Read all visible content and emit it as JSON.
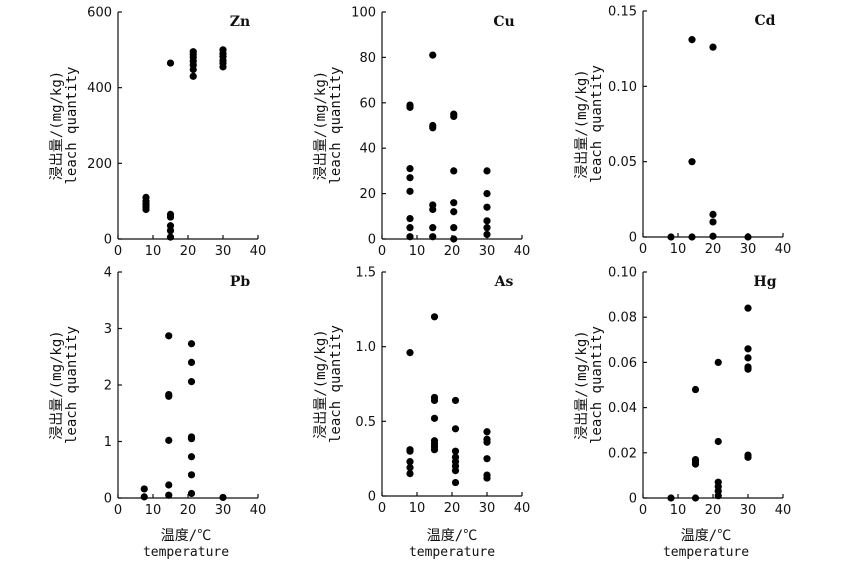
{
  "chart_data": [
    {
      "type": "scatter",
      "title": "Zn",
      "ylabel_cn": "浸出量/(mg/kg)",
      "ylabel_en": "leach quantity",
      "xlim": [
        0,
        40
      ],
      "ylim": [
        0,
        600
      ],
      "xticks": [
        0,
        10,
        20,
        30,
        40
      ],
      "xtick_labels": [
        "0",
        "10",
        "20",
        "30",
        "40"
      ],
      "yticks": [
        0,
        200,
        400,
        600
      ],
      "ytick_labels": [
        "0",
        "200",
        "400",
        "600"
      ],
      "points": [
        [
          8,
          110
        ],
        [
          8,
          100
        ],
        [
          8,
          92
        ],
        [
          8,
          85
        ],
        [
          8,
          78
        ],
        [
          15,
          465
        ],
        [
          15,
          65
        ],
        [
          15,
          58
        ],
        [
          15,
          35
        ],
        [
          15,
          22
        ],
        [
          15,
          5
        ],
        [
          21.5,
          495
        ],
        [
          21.5,
          488
        ],
        [
          21.5,
          480
        ],
        [
          21.5,
          470
        ],
        [
          21.5,
          460
        ],
        [
          21.5,
          448
        ],
        [
          21.5,
          430
        ],
        [
          30,
          500
        ],
        [
          30,
          490
        ],
        [
          30,
          482
        ],
        [
          30,
          472
        ],
        [
          30,
          465
        ],
        [
          30,
          455
        ]
      ]
    },
    {
      "type": "scatter",
      "title": "Cu",
      "ylabel_cn": "浸出量/(mg/kg)",
      "ylabel_en": "leach quantity",
      "xlim": [
        0,
        40
      ],
      "ylim": [
        0,
        100
      ],
      "xticks": [
        0,
        10,
        20,
        30,
        40
      ],
      "xtick_labels": [
        "0",
        "10",
        "20",
        "30",
        "40"
      ],
      "yticks": [
        0,
        20,
        40,
        60,
        80,
        100
      ],
      "ytick_labels": [
        "0",
        "20",
        "40",
        "60",
        "80",
        "100"
      ],
      "points": [
        [
          8,
          59
        ],
        [
          8,
          58
        ],
        [
          8,
          31
        ],
        [
          8,
          27
        ],
        [
          8,
          21
        ],
        [
          8,
          9
        ],
        [
          8,
          5
        ],
        [
          8,
          1
        ],
        [
          14.5,
          81
        ],
        [
          14.5,
          50
        ],
        [
          14.5,
          49
        ],
        [
          14.5,
          15
        ],
        [
          14.5,
          13
        ],
        [
          14.5,
          5
        ],
        [
          14.5,
          1
        ],
        [
          20.5,
          55
        ],
        [
          20.5,
          54
        ],
        [
          20.5,
          30
        ],
        [
          20.5,
          16
        ],
        [
          20.5,
          12
        ],
        [
          20.5,
          5
        ],
        [
          20.5,
          0
        ],
        [
          30,
          30
        ],
        [
          30,
          20
        ],
        [
          30,
          14
        ],
        [
          30,
          8
        ],
        [
          30,
          5
        ],
        [
          30,
          2
        ]
      ]
    },
    {
      "type": "scatter",
      "title": "Cd",
      "ylabel_cn": "浸出量/(mg/kg)",
      "ylabel_en": "leach quantity",
      "xlim": [
        0,
        40
      ],
      "ylim": [
        0,
        0.15
      ],
      "xticks": [
        0,
        10,
        20,
        30,
        40
      ],
      "xtick_labels": [
        "0",
        "10",
        "20",
        "30",
        "40"
      ],
      "yticks": [
        0,
        0.05,
        0.1,
        0.15
      ],
      "ytick_labels": [
        "0",
        "0.05",
        "0.10",
        "0.15"
      ],
      "points": [
        [
          8,
          0
        ],
        [
          14,
          0.131
        ],
        [
          14,
          0.05
        ],
        [
          14,
          0
        ],
        [
          20,
          0.126
        ],
        [
          20,
          0.015
        ],
        [
          20,
          0.01
        ],
        [
          20,
          0.0005
        ],
        [
          30,
          0
        ]
      ]
    },
    {
      "type": "scatter",
      "title": "Pb",
      "ylabel_cn": "浸出量/(mg/kg)",
      "ylabel_en": "leach quantity",
      "xlim": [
        0,
        40
      ],
      "ylim": [
        0,
        4
      ],
      "xticks": [
        0,
        10,
        20,
        30,
        40
      ],
      "xtick_labels": [
        "0",
        "10",
        "20",
        "30",
        "40"
      ],
      "yticks": [
        0,
        1,
        2,
        3,
        4
      ],
      "ytick_labels": [
        "0",
        "1",
        "2",
        "3",
        "4"
      ],
      "points": [
        [
          7.5,
          0.16
        ],
        [
          7.5,
          0.02
        ],
        [
          14.5,
          2.87
        ],
        [
          14.5,
          1.83
        ],
        [
          14.5,
          1.8
        ],
        [
          14.5,
          1.02
        ],
        [
          14.5,
          0.23
        ],
        [
          14.5,
          0.05
        ],
        [
          21,
          2.73
        ],
        [
          21,
          2.4
        ],
        [
          21,
          2.06
        ],
        [
          21,
          1.08
        ],
        [
          21,
          1.05
        ],
        [
          21,
          0.73
        ],
        [
          21,
          0.41
        ],
        [
          21,
          0.08
        ],
        [
          30,
          0.01
        ]
      ]
    },
    {
      "type": "scatter",
      "title": "As",
      "ylabel_cn": "浸出量/(mg/kg)",
      "ylabel_en": "leach quantity",
      "xlim": [
        0,
        40
      ],
      "ylim": [
        0,
        1.5
      ],
      "xticks": [
        0,
        10,
        20,
        30,
        40
      ],
      "xtick_labels": [
        "0",
        "10",
        "20",
        "30",
        "40"
      ],
      "yticks": [
        0,
        0.5,
        1,
        1.5
      ],
      "ytick_labels": [
        "0",
        "0.5",
        "1.0",
        "1.5"
      ],
      "points": [
        [
          8,
          0.96
        ],
        [
          8,
          0.31
        ],
        [
          8,
          0.3
        ],
        [
          8,
          0.23
        ],
        [
          8,
          0.19
        ],
        [
          8,
          0.15
        ],
        [
          15,
          1.2
        ],
        [
          15,
          0.66
        ],
        [
          15,
          0.64
        ],
        [
          15,
          0.52
        ],
        [
          15,
          0.37
        ],
        [
          15,
          0.35
        ],
        [
          15,
          0.33
        ],
        [
          15,
          0.31
        ],
        [
          21,
          0.64
        ],
        [
          21,
          0.45
        ],
        [
          21,
          0.3
        ],
        [
          21,
          0.26
        ],
        [
          21,
          0.23
        ],
        [
          21,
          0.2
        ],
        [
          21,
          0.17
        ],
        [
          21,
          0.09
        ],
        [
          30,
          0.43
        ],
        [
          30,
          0.38
        ],
        [
          30,
          0.36
        ],
        [
          30,
          0.25
        ],
        [
          30,
          0.14
        ],
        [
          30,
          0.12
        ]
      ]
    },
    {
      "type": "scatter",
      "title": "Hg",
      "ylabel_cn": "浸出量/(mg/kg)",
      "ylabel_en": "leach quantity",
      "xlim": [
        0,
        40
      ],
      "ylim": [
        0,
        0.1
      ],
      "xticks": [
        0,
        10,
        20,
        30,
        40
      ],
      "xtick_labels": [
        "0",
        "10",
        "20",
        "30",
        "40"
      ],
      "yticks": [
        0,
        0.02,
        0.04,
        0.06,
        0.08,
        0.1
      ],
      "ytick_labels": [
        "0",
        "0.02",
        "0.04",
        "0.06",
        "0.08",
        "0.10"
      ],
      "points": [
        [
          8,
          0
        ],
        [
          15,
          0.048
        ],
        [
          15,
          0.017
        ],
        [
          15,
          0.016
        ],
        [
          15,
          0.015
        ],
        [
          15,
          0
        ],
        [
          21.5,
          0.06
        ],
        [
          21.5,
          0.025
        ],
        [
          21.5,
          0.007
        ],
        [
          21.5,
          0.005
        ],
        [
          21.5,
          0.003
        ],
        [
          21.5,
          0.001
        ],
        [
          30,
          0.084
        ],
        [
          30,
          0.066
        ],
        [
          30,
          0.062
        ],
        [
          30,
          0.058
        ],
        [
          30,
          0.057
        ],
        [
          30,
          0.019
        ],
        [
          30,
          0.018
        ]
      ]
    }
  ],
  "xlabel_cn": "温度/℃",
  "xlabel_en": "temperature"
}
